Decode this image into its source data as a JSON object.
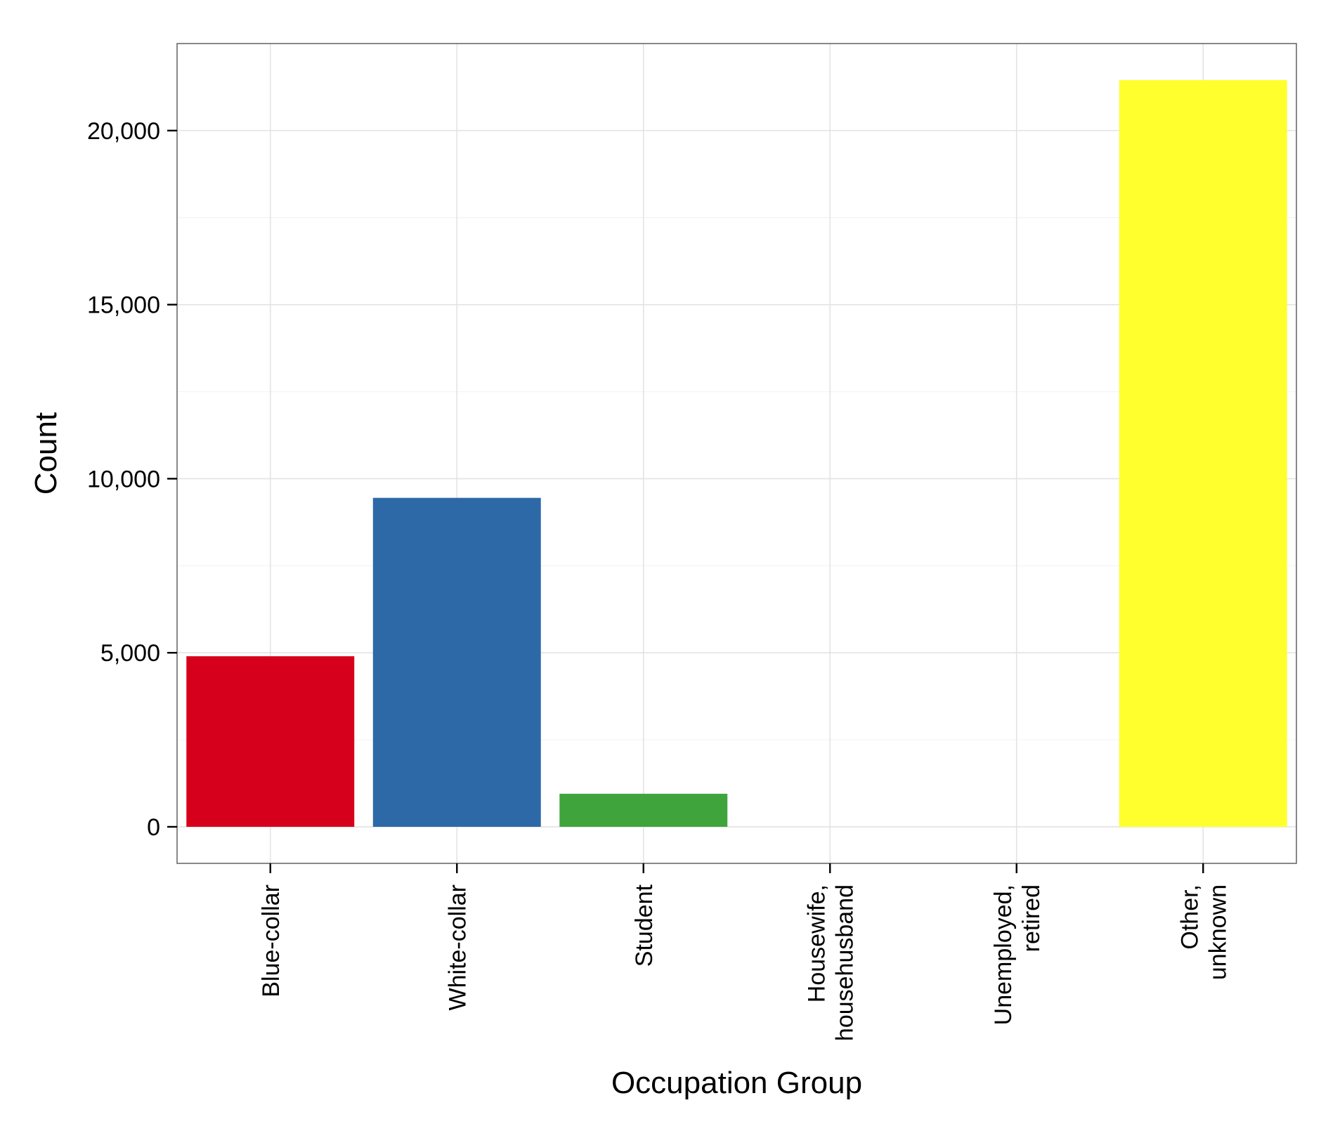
{
  "chart_data": {
    "type": "bar",
    "xlabel": "Occupation Group",
    "ylabel": "Count",
    "ylim": [
      -1050,
      22500
    ],
    "yticks": [
      0,
      5000,
      10000,
      15000,
      20000
    ],
    "ytick_labels": [
      "0",
      "5,000",
      "10,000",
      "15,000",
      "20,000"
    ],
    "categories": [
      [
        "Blue-collar"
      ],
      [
        "White-collar"
      ],
      [
        "Student"
      ],
      [
        "Housewife,",
        "househusband"
      ],
      [
        "Unemployed,",
        "retired"
      ],
      [
        "Other,",
        "unknown"
      ]
    ],
    "values": [
      4900,
      9450,
      950,
      0,
      0,
      21450
    ],
    "colors": [
      "#d7001c",
      "#2e69a7",
      "#40a43c",
      "#9a4ea6",
      "#ff8000",
      "#ffff2e"
    ],
    "grid": true,
    "legend": "none"
  }
}
